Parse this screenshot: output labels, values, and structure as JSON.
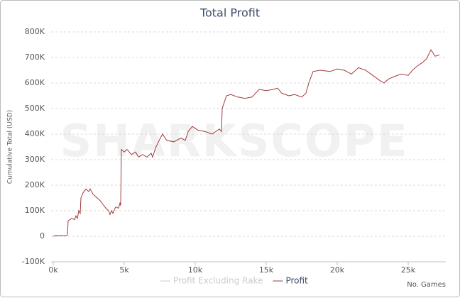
{
  "chart_data": {
    "type": "line",
    "title": "Total Profit",
    "y_label": "Cumulative Total (USD)",
    "x_label": "No. Games",
    "watermark": "SHARKSCOPE",
    "xlim": [
      0,
      27500
    ],
    "ylim": [
      -100000,
      800000
    ],
    "xticks": [
      {
        "value": 0,
        "label": "0k"
      },
      {
        "value": 5000,
        "label": "5k"
      },
      {
        "value": 10000,
        "label": "10k"
      },
      {
        "value": 15000,
        "label": "15k"
      },
      {
        "value": 20000,
        "label": "20k"
      },
      {
        "value": 25000,
        "label": "25k"
      }
    ],
    "yticks": [
      {
        "value": -100000,
        "label": "-100K"
      },
      0,
      {
        "value": 100000,
        "label": "100K"
      },
      {
        "value": 200000,
        "label": "200K"
      },
      {
        "value": 300000,
        "label": "300K"
      },
      {
        "value": 400000,
        "label": "400K"
      },
      {
        "value": 500000,
        "label": "500K"
      },
      {
        "value": 600000,
        "label": "600K"
      },
      {
        "value": 700000,
        "label": "700K"
      },
      {
        "value": 800000,
        "label": "800K"
      }
    ],
    "grid": true,
    "inactive_series": [
      {
        "name": "Profit Excluding Rake",
        "color": "#cccccc"
      }
    ],
    "x": [
      0,
      200,
      900,
      1000,
      1050,
      1300,
      1500,
      1600,
      1700,
      1800,
      1900,
      1950,
      2100,
      2300,
      2500,
      2600,
      2800,
      3000,
      3300,
      3500,
      3700,
      3900,
      4000,
      4100,
      4200,
      4400,
      4600,
      4700,
      4750,
      4800,
      5000,
      5200,
      5500,
      5800,
      6000,
      6300,
      6600,
      6900,
      7000,
      7200,
      7500,
      7700,
      8000,
      8500,
      9000,
      9300,
      9500,
      9800,
      10200,
      10700,
      11200,
      11700,
      11850,
      11900,
      12200,
      12500,
      13000,
      13500,
      14000,
      14500,
      15000,
      15500,
      15800,
      16100,
      16600,
      17000,
      17500,
      17800,
      18000,
      18300,
      18800,
      19500,
      20000,
      20500,
      21000,
      21500,
      22000,
      22500,
      23000,
      23300,
      23600,
      24000,
      24500,
      25000,
      25300,
      25600,
      26000,
      26300,
      26600,
      26900,
      27200
    ],
    "series": [
      {
        "name": "Profit",
        "color": "#a33a3a",
        "values": [
          0,
          3000,
          2000,
          5000,
          60000,
          70000,
          65000,
          80000,
          70000,
          100000,
          90000,
          150000,
          170000,
          185000,
          175000,
          185000,
          165000,
          155000,
          140000,
          125000,
          110000,
          100000,
          85000,
          100000,
          90000,
          115000,
          110000,
          130000,
          120000,
          340000,
          330000,
          340000,
          320000,
          330000,
          310000,
          320000,
          310000,
          325000,
          310000,
          345000,
          380000,
          400000,
          375000,
          370000,
          385000,
          375000,
          410000,
          430000,
          415000,
          410000,
          400000,
          420000,
          410000,
          500000,
          550000,
          555000,
          545000,
          540000,
          545000,
          575000,
          570000,
          575000,
          580000,
          560000,
          550000,
          555000,
          545000,
          560000,
          600000,
          645000,
          650000,
          645000,
          655000,
          650000,
          635000,
          660000,
          650000,
          630000,
          610000,
          600000,
          615000,
          625000,
          635000,
          630000,
          650000,
          665000,
          680000,
          695000,
          730000,
          705000,
          710000
        ]
      }
    ]
  }
}
